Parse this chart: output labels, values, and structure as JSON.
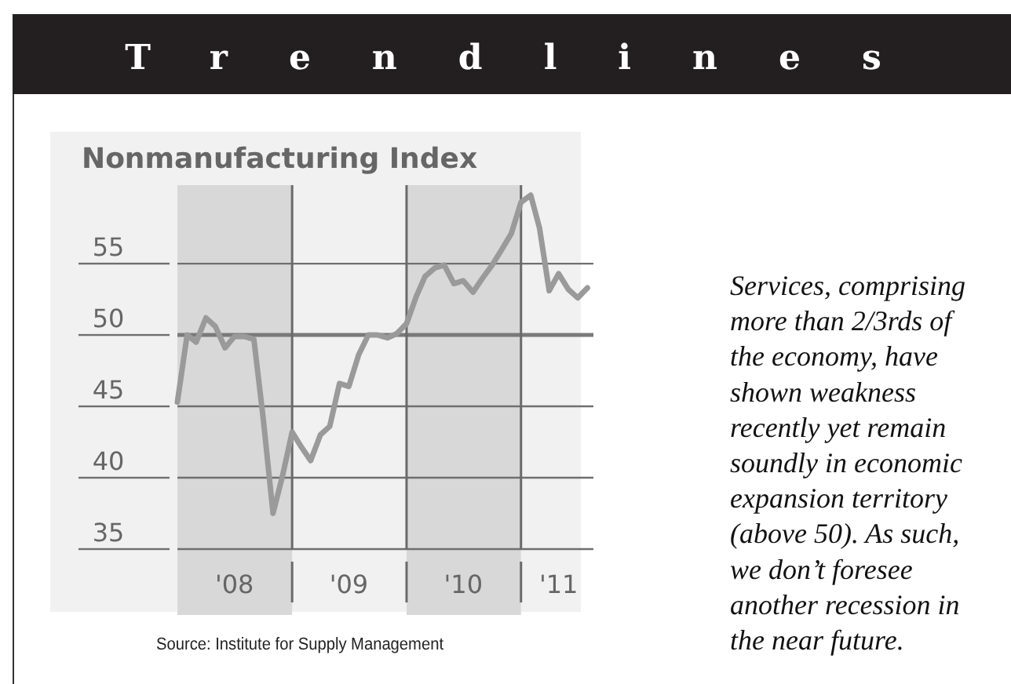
{
  "chart_data": {
    "type": "line",
    "title": "Trendlines",
    "subtitle": "Nonmanufacturing Index",
    "x": [
      "2008-01",
      "2008-02",
      "2008-03",
      "2008-04",
      "2008-05",
      "2008-06",
      "2008-07",
      "2008-08",
      "2008-09",
      "2008-10",
      "2008-11",
      "2008-12",
      "2009-01",
      "2009-02",
      "2009-03",
      "2009-04",
      "2009-05",
      "2009-06",
      "2009-07",
      "2009-08",
      "2009-09",
      "2009-10",
      "2009-11",
      "2009-12",
      "2010-01",
      "2010-02",
      "2010-03",
      "2010-04",
      "2010-05",
      "2010-06",
      "2010-07",
      "2010-08",
      "2010-09",
      "2010-10",
      "2010-11",
      "2010-12",
      "2011-01",
      "2011-02",
      "2011-03",
      "2011-04",
      "2011-05",
      "2011-06",
      "2011-07",
      "2011-08"
    ],
    "series": [
      {
        "color": "#9a9a9a",
        "values": [
          45.3,
          50,
          49.5,
          51.2,
          50.6,
          49.1,
          49.9,
          49.9,
          49.7,
          44.1,
          37.5,
          40.1,
          43.2,
          42.1,
          41.2,
          43,
          43.6,
          46.6,
          46.4,
          48.6,
          50,
          50,
          49.8,
          50.1,
          50.8,
          52.7,
          54.1,
          54.7,
          54.9,
          53.6,
          53.8,
          53,
          54,
          54.9,
          56,
          57.1,
          59.3,
          59.8,
          57.5,
          53.1,
          54.3,
          53.2,
          52.6,
          53.3
        ]
      }
    ],
    "xlim": [
      "2008-01-01",
      "2011-08-20"
    ],
    "xticks": [
      {
        "value": "2008-07-01",
        "label": "'08"
      },
      {
        "value": "2009-07-01",
        "label": "'09"
      },
      {
        "value": "2010-07-01",
        "label": "'10"
      },
      {
        "value": "2011-05-01",
        "label": "'11"
      }
    ],
    "ylim": [
      35,
      60.5
    ],
    "yticks": [
      35,
      40,
      45,
      50,
      55
    ],
    "grid": "y",
    "marker": "none",
    "line_style": "solid",
    "ref_lines": [
      {
        "axis": "y",
        "value": 50,
        "color": "#7a7a7a"
      },
      {
        "axis": "x",
        "value": "2009-01-01",
        "color": "#6a6a6a"
      },
      {
        "axis": "x",
        "value": "2010-01-01",
        "color": "#6a6a6a"
      },
      {
        "axis": "x",
        "value": "2011-01-01",
        "color": "#6a6a6a"
      }
    ],
    "bands": [
      {
        "axis": "x",
        "from": "2008-01-01",
        "to": "2009-01-01",
        "color": "#d8d8d8"
      },
      {
        "axis": "x",
        "from": "2010-01-01",
        "to": "2011-01-01",
        "color": "#d8d8d8"
      }
    ],
    "annotations": [
      "Source: Institute for Supply Management",
      "Services, comprising more than 2/3rds of the economy, have shown weakness recently yet remain soundly in economic expansion territory (above 50).  As such, we don’t foresee another recession in the near future."
    ]
  }
}
